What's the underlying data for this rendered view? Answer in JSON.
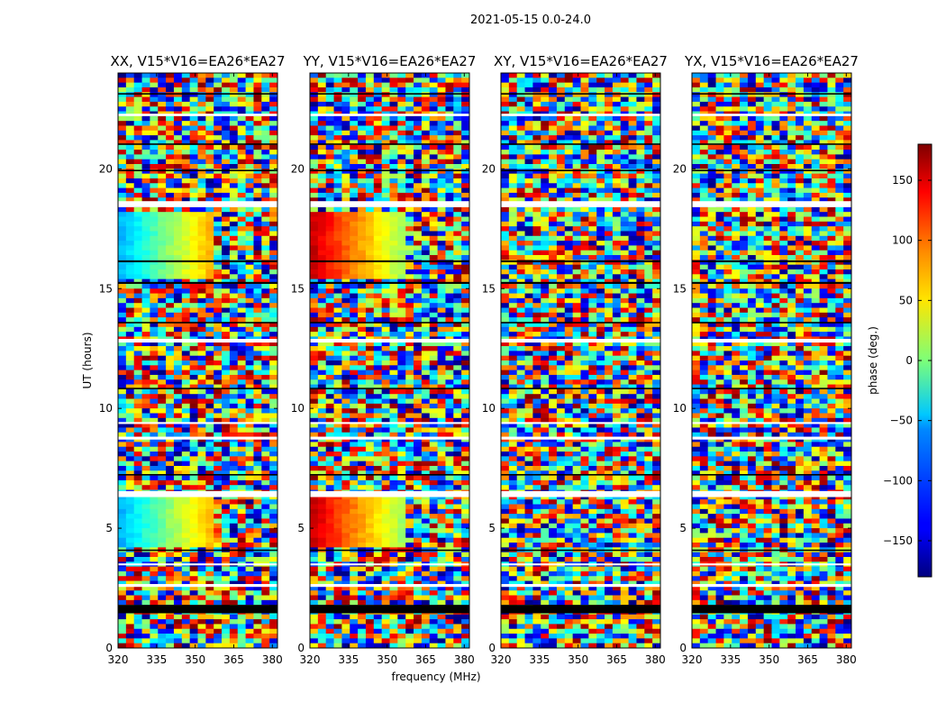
{
  "chart_data": {
    "type": "heatmap",
    "title": "2021-05-15 0.0-24.0",
    "xlabel": "frequency (MHz)",
    "ylabel": "UT (hours)",
    "colorbar_label": "phase (deg.)",
    "xlim": [
      320,
      382
    ],
    "ylim": [
      0,
      24
    ],
    "x_ticks": [
      320,
      335,
      350,
      365,
      380
    ],
    "y_ticks": [
      0,
      5,
      10,
      15,
      20
    ],
    "colorbar_range": [
      -180,
      180
    ],
    "colorbar_ticks": [
      -150,
      -100,
      -50,
      0,
      50,
      100,
      150
    ],
    "colormap": "jet",
    "grid": false,
    "panels": [
      {
        "title": "XX, V15*V16=EA26*EA27"
      },
      {
        "title": "YY, V15*V16=EA26*EA27"
      },
      {
        "title": "XY, V15*V16=EA26*EA27"
      },
      {
        "title": "YX, V15*V16=EA26*EA27"
      }
    ]
  }
}
